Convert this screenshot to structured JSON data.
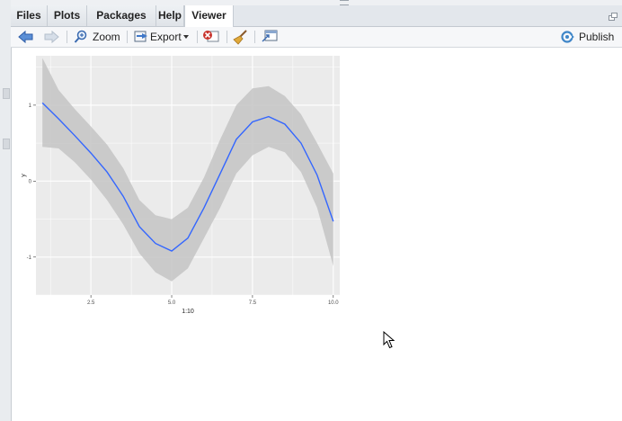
{
  "tabs": [
    {
      "label": "Files"
    },
    {
      "label": "Plots"
    },
    {
      "label": "Packages"
    },
    {
      "label": "Help"
    },
    {
      "label": "Viewer"
    }
  ],
  "toolbar": {
    "zoom_label": "Zoom",
    "export_label": "Export",
    "publish_label": "Publish"
  },
  "colors": {
    "panel_bg": "#ebebeb",
    "grid": "#ffffff",
    "ribbon": "#c4c4c4",
    "line": "#3366ff"
  },
  "chart_data": {
    "type": "line",
    "xlabel": "1:10",
    "ylabel": "y",
    "xlim": [
      0.8,
      10.2
    ],
    "ylim": [
      -1.5,
      1.65
    ],
    "x_ticks": [
      2.5,
      5.0,
      7.5,
      10.0
    ],
    "x_tick_labels": [
      "2.5",
      "5.0",
      "7.5",
      "10.0"
    ],
    "y_ticks": [
      -1,
      0,
      1
    ],
    "y_tick_labels": [
      "-1",
      "0",
      "1"
    ],
    "grid": true,
    "series": [
      {
        "x": [
          1.0,
          1.5,
          2.0,
          2.5,
          3.0,
          3.5,
          4.0,
          4.5,
          5.0,
          5.5,
          6.0,
          6.5,
          7.0,
          7.5,
          8.0,
          8.5,
          9.0,
          9.5,
          10.0
        ],
        "y": [
          1.03,
          0.82,
          0.6,
          0.37,
          0.12,
          -0.2,
          -0.6,
          -0.82,
          -0.92,
          -0.75,
          -0.35,
          0.1,
          0.55,
          0.78,
          0.85,
          0.75,
          0.5,
          0.08,
          -0.53
        ],
        "upper": [
          1.62,
          1.2,
          0.95,
          0.72,
          0.48,
          0.17,
          -0.25,
          -0.45,
          -0.5,
          -0.35,
          0.05,
          0.55,
          1.0,
          1.22,
          1.25,
          1.12,
          0.88,
          0.5,
          0.1
        ],
        "lower": [
          0.45,
          0.43,
          0.25,
          0.02,
          -0.25,
          -0.57,
          -0.95,
          -1.2,
          -1.32,
          -1.15,
          -0.75,
          -0.35,
          0.1,
          0.34,
          0.45,
          0.38,
          0.12,
          -0.35,
          -1.12
        ]
      }
    ]
  }
}
